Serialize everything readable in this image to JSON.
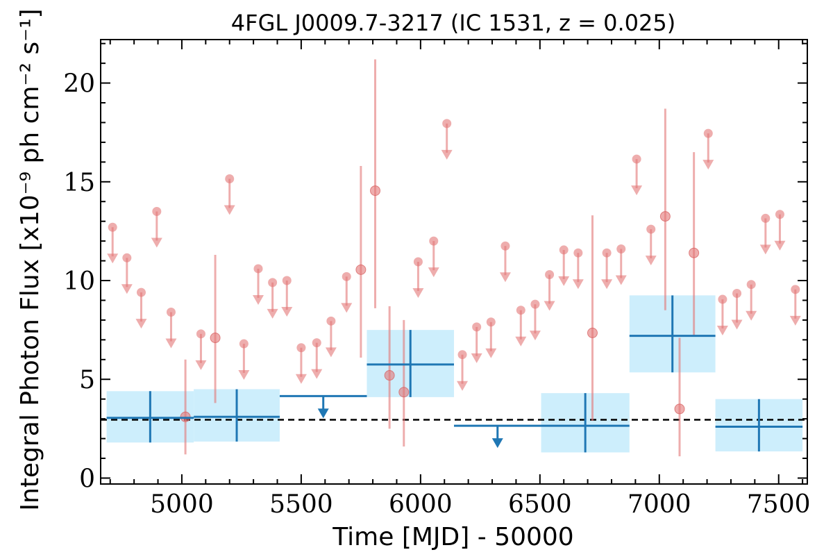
{
  "chart_data": {
    "type": "scatter",
    "title": "4FGL J0009.7-3217 (IC 1531, z = 0.025)",
    "xlabel": "Time [MJD] - 50000",
    "ylabel": "Integral Photon Flux [x10⁻⁹ ph cm⁻² s⁻¹]",
    "xlim": [
      4660,
      7620
    ],
    "ylim": [
      -0.3,
      22.2
    ],
    "x_ticks": [
      5000,
      5500,
      6000,
      6500,
      7000,
      7500
    ],
    "y_ticks": [
      0,
      5,
      10,
      15,
      20
    ],
    "reference_level": 2.95,
    "colors": {
      "short_bins": "#e37777",
      "long_bins": "#1f77b4",
      "long_bins_band": "#cdeefc",
      "reference_line": "#000000"
    },
    "short_bins_detections": [
      {
        "x": 5015,
        "y": 3.1,
        "low": 1.2,
        "high": 6.0
      },
      {
        "x": 5140,
        "y": 7.1,
        "low": 3.8,
        "high": 11.3
      },
      {
        "x": 5750,
        "y": 10.55,
        "low": 6.1,
        "high": 15.8
      },
      {
        "x": 5810,
        "y": 14.55,
        "low": 8.6,
        "high": 21.2
      },
      {
        "x": 5870,
        "y": 5.2,
        "low": 2.5,
        "high": 8.7
      },
      {
        "x": 5930,
        "y": 4.35,
        "low": 1.6,
        "high": 8.0
      },
      {
        "x": 6720,
        "y": 7.35,
        "low": 2.9,
        "high": 13.3
      },
      {
        "x": 7025,
        "y": 13.25,
        "low": 8.5,
        "high": 18.7
      },
      {
        "x": 7085,
        "y": 3.5,
        "low": 1.1,
        "high": 7.1
      },
      {
        "x": 7145,
        "y": 11.4,
        "low": 7.2,
        "high": 16.5
      }
    ],
    "short_bins_upper_limits": [
      {
        "x": 4710,
        "y": 12.7
      },
      {
        "x": 4770,
        "y": 11.15
      },
      {
        "x": 4830,
        "y": 9.4
      },
      {
        "x": 4895,
        "y": 13.5
      },
      {
        "x": 4955,
        "y": 8.4
      },
      {
        "x": 5080,
        "y": 7.3
      },
      {
        "x": 5200,
        "y": 15.15
      },
      {
        "x": 5260,
        "y": 6.8
      },
      {
        "x": 5320,
        "y": 10.6
      },
      {
        "x": 5380,
        "y": 9.9
      },
      {
        "x": 5440,
        "y": 10.0
      },
      {
        "x": 5500,
        "y": 6.6
      },
      {
        "x": 5565,
        "y": 6.85
      },
      {
        "x": 5625,
        "y": 7.95
      },
      {
        "x": 5690,
        "y": 10.2
      },
      {
        "x": 5990,
        "y": 10.95
      },
      {
        "x": 6055,
        "y": 12.0
      },
      {
        "x": 6110,
        "y": 17.95
      },
      {
        "x": 6175,
        "y": 6.25
      },
      {
        "x": 6235,
        "y": 7.65
      },
      {
        "x": 6295,
        "y": 7.9
      },
      {
        "x": 6355,
        "y": 11.75
      },
      {
        "x": 6420,
        "y": 8.5
      },
      {
        "x": 6480,
        "y": 8.8
      },
      {
        "x": 6540,
        "y": 10.3
      },
      {
        "x": 6600,
        "y": 11.55
      },
      {
        "x": 6660,
        "y": 11.4
      },
      {
        "x": 6780,
        "y": 11.4
      },
      {
        "x": 6840,
        "y": 11.6
      },
      {
        "x": 6905,
        "y": 16.15
      },
      {
        "x": 6965,
        "y": 12.6
      },
      {
        "x": 7205,
        "y": 17.45
      },
      {
        "x": 7265,
        "y": 9.05
      },
      {
        "x": 7325,
        "y": 9.35
      },
      {
        "x": 7385,
        "y": 9.8
      },
      {
        "x": 7445,
        "y": 13.15
      },
      {
        "x": 7505,
        "y": 13.35
      },
      {
        "x": 7570,
        "y": 9.55
      }
    ],
    "long_bins_detections": [
      {
        "x0": 4685,
        "x1": 5050,
        "y": 3.05,
        "low": 1.8,
        "high": 4.4
      },
      {
        "x0": 5050,
        "x1": 5410,
        "y": 3.1,
        "low": 1.85,
        "high": 4.5
      },
      {
        "x0": 5775,
        "x1": 6140,
        "y": 5.75,
        "low": 4.1,
        "high": 7.5
      },
      {
        "x0": 6505,
        "x1": 6875,
        "y": 2.65,
        "low": 1.3,
        "high": 4.3
      },
      {
        "x0": 6875,
        "x1": 7235,
        "y": 7.2,
        "low": 5.35,
        "high": 9.25
      },
      {
        "x0": 7235,
        "x1": 7600,
        "y": 2.6,
        "low": 1.35,
        "high": 4.0
      }
    ],
    "long_bins_upper_limits": [
      {
        "x0": 5410,
        "x1": 5775,
        "y": 4.15
      },
      {
        "x0": 6140,
        "x1": 6505,
        "y": 2.65
      }
    ]
  }
}
